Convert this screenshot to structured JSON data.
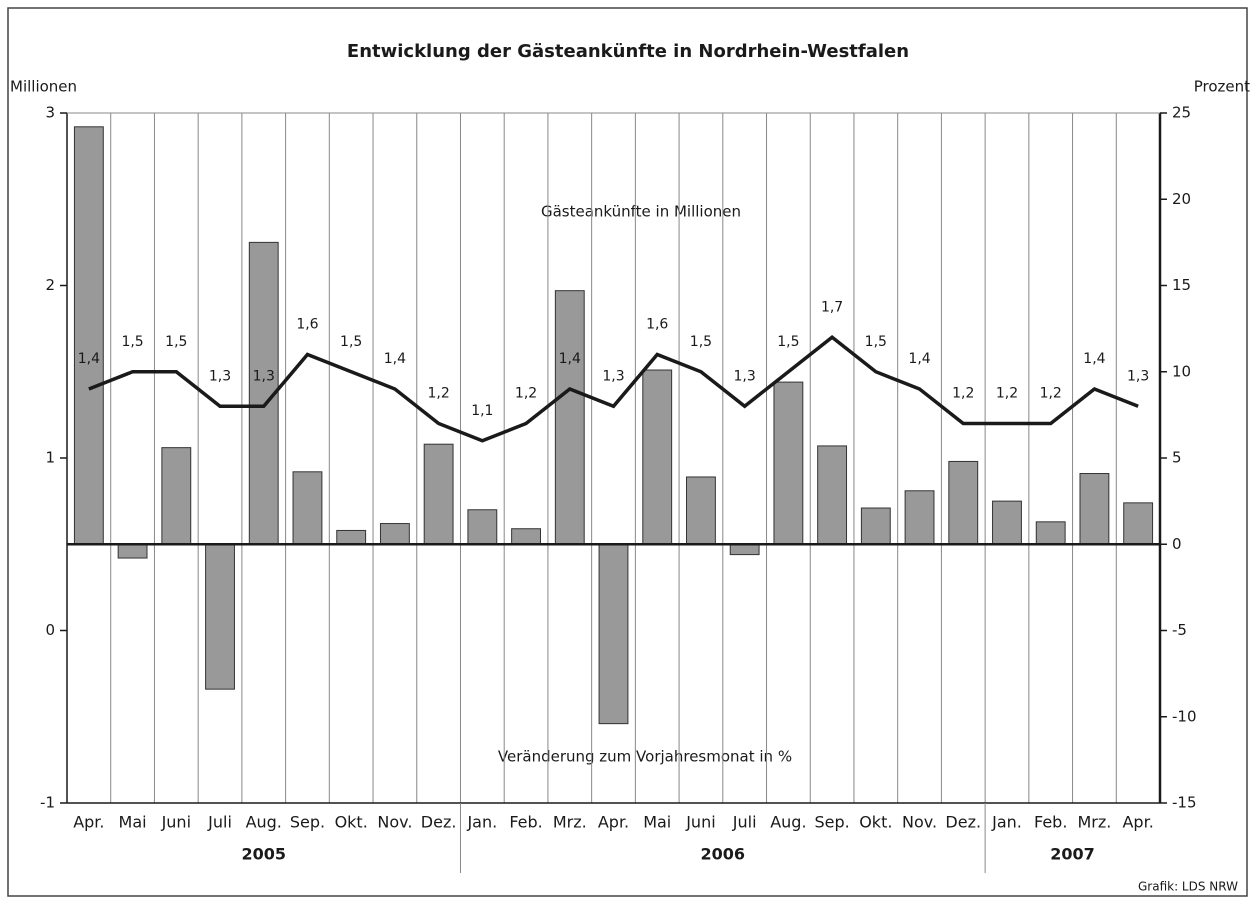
{
  "chart_data": {
    "type": "bar-line",
    "title": "Entwicklung der Gästeankünfte in Nordrhein-Westfalen",
    "y_label": "Millionen",
    "y2_label": "Prozent",
    "annotations": [
      "Gästeankünfte in Millionen",
      "Veränderung zum Vorjahresmonat in %"
    ],
    "source": "Grafik: LDS NRW",
    "categories": [
      "Apr.",
      "Mai",
      "Juni",
      "Juli",
      "Aug.",
      "Sep.",
      "Okt.",
      "Nov.",
      "Dez.",
      "Jan.",
      "Feb.",
      "Mrz.",
      "Apr.",
      "Mai",
      "Juni",
      "Juli",
      "Aug.",
      "Sep.",
      "Okt.",
      "Nov.",
      "Dez.",
      "Jan.",
      "Feb.",
      "Mrz.",
      "Apr."
    ],
    "category_years": [
      "2005",
      "2005",
      "2005",
      "2005",
      "2005",
      "2005",
      "2005",
      "2005",
      "2005",
      "2006",
      "2006",
      "2006",
      "2006",
      "2006",
      "2006",
      "2006",
      "2006",
      "2006",
      "2006",
      "2006",
      "2006",
      "2007",
      "2007",
      "2007",
      "2007"
    ],
    "ylim": [
      -1,
      3
    ],
    "yticks": [
      -1,
      0,
      1,
      2,
      3
    ],
    "y2lim": [
      -15,
      25
    ],
    "y2ticks": [
      -15,
      -10,
      -5,
      0,
      5,
      10,
      15,
      20,
      25
    ],
    "series": [
      {
        "name": "Veränderung zum Vorjahresmonat in %",
        "type": "bar",
        "axis": "y2",
        "color": "#999999",
        "values": [
          24.2,
          -0.8,
          5.6,
          -8.4,
          17.5,
          4.2,
          0.8,
          1.2,
          5.8,
          2.0,
          0.9,
          14.7,
          -10.4,
          10.1,
          3.9,
          -0.6,
          9.4,
          5.7,
          2.1,
          3.1,
          4.8,
          2.5,
          1.3,
          4.1,
          2.4
        ]
      },
      {
        "name": "Gästeankünfte in Millionen",
        "type": "line",
        "axis": "y",
        "color": "#1a1a1a",
        "values": [
          1.4,
          1.5,
          1.5,
          1.3,
          1.3,
          1.6,
          1.5,
          1.4,
          1.2,
          1.1,
          1.2,
          1.4,
          1.3,
          1.6,
          1.5,
          1.3,
          1.5,
          1.7,
          1.5,
          1.4,
          1.2,
          1.2,
          1.2,
          1.4,
          1.3
        ],
        "value_labels": [
          "1,4",
          "1,5",
          "1,5",
          "1,3",
          "1,3",
          "1,6",
          "1,5",
          "1,4",
          "1,2",
          "1,1",
          "1,2",
          "1,4",
          "1,3",
          "1,6",
          "1,5",
          "1,3",
          "1,5",
          "1,7",
          "1,5",
          "1,4",
          "1,2",
          "1,2",
          "1,2",
          "1,4",
          "1,3"
        ]
      }
    ]
  }
}
